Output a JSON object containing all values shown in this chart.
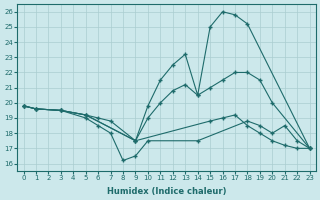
{
  "xlabel": "Humidex (Indice chaleur)",
  "bg_color": "#cce8eb",
  "grid_color": "#aacdd0",
  "line_color": "#1e6b6b",
  "xlim": [
    -0.5,
    23.5
  ],
  "ylim": [
    15.5,
    26.5
  ],
  "xticks": [
    0,
    1,
    2,
    3,
    4,
    5,
    6,
    7,
    8,
    9,
    10,
    11,
    12,
    13,
    14,
    15,
    16,
    17,
    18,
    19,
    20,
    21,
    22,
    23
  ],
  "yticks": [
    16,
    17,
    18,
    19,
    20,
    21,
    22,
    23,
    24,
    25,
    26
  ],
  "lines": [
    {
      "x": [
        0,
        1,
        3,
        5,
        6,
        7,
        9,
        10,
        11,
        12,
        13,
        14,
        15,
        16,
        17,
        18,
        23
      ],
      "y": [
        19.8,
        19.6,
        19.5,
        19.2,
        19.0,
        18.8,
        17.5,
        19.8,
        21.5,
        22.5,
        23.2,
        20.5,
        25.0,
        26.0,
        25.8,
        25.2,
        17.0
      ]
    },
    {
      "x": [
        0,
        1,
        3,
        5,
        9,
        10,
        11,
        12,
        13,
        14,
        15,
        16,
        17,
        18,
        19,
        20,
        23
      ],
      "y": [
        19.8,
        19.6,
        19.5,
        19.2,
        17.5,
        19.0,
        20.0,
        20.8,
        21.2,
        20.5,
        21.0,
        21.5,
        22.0,
        22.0,
        21.5,
        20.0,
        17.0
      ]
    },
    {
      "x": [
        0,
        1,
        3,
        5,
        9,
        15,
        16,
        17,
        18,
        19,
        20,
        21,
        22,
        23
      ],
      "y": [
        19.8,
        19.6,
        19.5,
        19.2,
        17.5,
        18.8,
        19.0,
        19.2,
        18.5,
        18.0,
        17.5,
        17.2,
        17.0,
        17.0
      ]
    },
    {
      "x": [
        0,
        1,
        3,
        5,
        6,
        7,
        8,
        9,
        10,
        14,
        18,
        19,
        20,
        21,
        22,
        23
      ],
      "y": [
        19.8,
        19.6,
        19.5,
        19.0,
        18.5,
        18.0,
        16.2,
        16.5,
        17.5,
        17.5,
        18.8,
        18.5,
        18.0,
        18.5,
        17.5,
        17.0
      ]
    }
  ]
}
